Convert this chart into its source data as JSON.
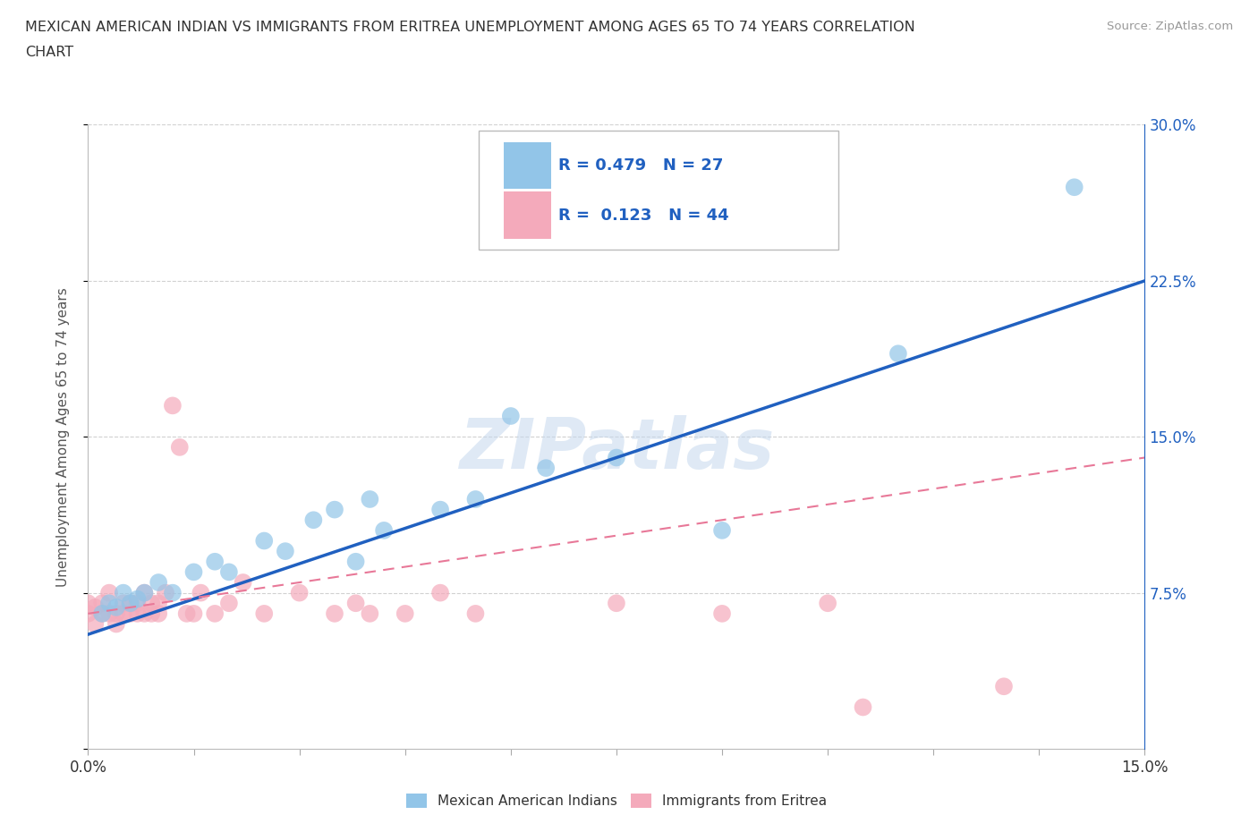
{
  "title_line1": "MEXICAN AMERICAN INDIAN VS IMMIGRANTS FROM ERITREA UNEMPLOYMENT AMONG AGES 65 TO 74 YEARS CORRELATION",
  "title_line2": "CHART",
  "source": "Source: ZipAtlas.com",
  "ylabel": "Unemployment Among Ages 65 to 74 years",
  "r_blue": 0.479,
  "n_blue": 27,
  "r_pink": 0.123,
  "n_pink": 44,
  "blue_scatter_x": [
    0.002,
    0.003,
    0.004,
    0.005,
    0.006,
    0.007,
    0.008,
    0.01,
    0.012,
    0.015,
    0.018,
    0.02,
    0.025,
    0.028,
    0.032,
    0.035,
    0.038,
    0.04,
    0.042,
    0.05,
    0.055,
    0.06,
    0.065,
    0.075,
    0.09,
    0.115,
    0.14
  ],
  "blue_scatter_y": [
    0.065,
    0.07,
    0.068,
    0.075,
    0.07,
    0.072,
    0.075,
    0.08,
    0.075,
    0.085,
    0.09,
    0.085,
    0.1,
    0.095,
    0.11,
    0.115,
    0.09,
    0.12,
    0.105,
    0.115,
    0.12,
    0.16,
    0.135,
    0.14,
    0.105,
    0.19,
    0.27
  ],
  "pink_scatter_x": [
    0.0,
    0.0,
    0.001,
    0.001,
    0.002,
    0.002,
    0.003,
    0.003,
    0.004,
    0.004,
    0.005,
    0.005,
    0.006,
    0.006,
    0.007,
    0.007,
    0.008,
    0.008,
    0.009,
    0.009,
    0.01,
    0.01,
    0.011,
    0.012,
    0.013,
    0.014,
    0.015,
    0.016,
    0.018,
    0.02,
    0.022,
    0.025,
    0.03,
    0.035,
    0.038,
    0.04,
    0.045,
    0.05,
    0.055,
    0.075,
    0.09,
    0.105,
    0.11,
    0.13
  ],
  "pink_scatter_y": [
    0.065,
    0.07,
    0.06,
    0.068,
    0.065,
    0.07,
    0.065,
    0.075,
    0.06,
    0.065,
    0.065,
    0.07,
    0.065,
    0.07,
    0.065,
    0.07,
    0.065,
    0.075,
    0.065,
    0.07,
    0.065,
    0.07,
    0.075,
    0.165,
    0.145,
    0.065,
    0.065,
    0.075,
    0.065,
    0.07,
    0.08,
    0.065,
    0.075,
    0.065,
    0.07,
    0.065,
    0.065,
    0.075,
    0.065,
    0.07,
    0.065,
    0.07,
    0.02,
    0.03
  ],
  "blue_color": "#92C5E8",
  "pink_color": "#F4AABB",
  "blue_line_color": "#2060C0",
  "pink_line_color": "#E87898",
  "blue_line_x0": 0.0,
  "blue_line_y0": 0.055,
  "blue_line_x1": 0.15,
  "blue_line_y1": 0.225,
  "pink_line_x0": 0.0,
  "pink_line_y0": 0.065,
  "pink_line_x1": 0.15,
  "pink_line_y1": 0.14,
  "watermark": "ZIPatlas",
  "xmax": 0.15,
  "ymax": 0.3,
  "ytick_positions": [
    0.0,
    0.075,
    0.15,
    0.225,
    0.3
  ],
  "ytick_labels_right": [
    "",
    "7.5%",
    "15.0%",
    "22.5%",
    "30.0%"
  ],
  "xtick_positions": [
    0.0,
    0.015,
    0.03,
    0.045,
    0.06,
    0.075,
    0.09,
    0.105,
    0.12,
    0.135,
    0.15
  ],
  "background_color": "#FFFFFF",
  "grid_color": "#CCCCCC"
}
